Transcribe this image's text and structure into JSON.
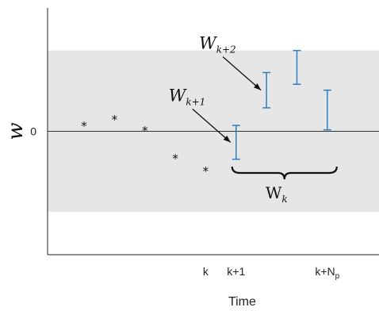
{
  "chart_data": {
    "type": "scatter",
    "title": "",
    "xlabel": "Time",
    "ylabel": "w",
    "xlim": [
      -5.2,
      5.7
    ],
    "ylim": [
      -4.2,
      4.2
    ],
    "x_ticks": [
      {
        "x": 0,
        "label": "k",
        "sub": ""
      },
      {
        "x": 1,
        "label": "k+1",
        "sub": ""
      },
      {
        "x": 4,
        "label": "k+N",
        "sub": "p"
      }
    ],
    "y_ticks": [
      {
        "y": 0,
        "label": "0"
      }
    ],
    "constraint_band": {
      "y_min": -2.75,
      "y_max": 2.75,
      "color": "#e6e6e6"
    },
    "zero_line": 0,
    "past_points": {
      "marker": "*",
      "x": [
        -4,
        -3,
        -2,
        -1,
        0
      ],
      "y": [
        0.28,
        0.5,
        0.12,
        -0.82,
        -1.25
      ]
    },
    "uncertainty_intervals": {
      "color": "#2f7fc1",
      "items": [
        {
          "x": 1,
          "low": -0.95,
          "high": 0.2
        },
        {
          "x": 2,
          "low": 0.8,
          "high": 2.0
        },
        {
          "x": 3,
          "low": 1.6,
          "high": 2.75
        },
        {
          "x": 4,
          "low": 0.05,
          "high": 1.4
        }
      ]
    },
    "annotations": [
      {
        "main": "W",
        "sub": "k+1",
        "target_x": 1
      },
      {
        "main": "W",
        "sub": "k+2",
        "target_x": 2
      }
    ],
    "brace": {
      "main": "W",
      "sub": "k",
      "x_from": 1,
      "x_to": 4
    }
  }
}
